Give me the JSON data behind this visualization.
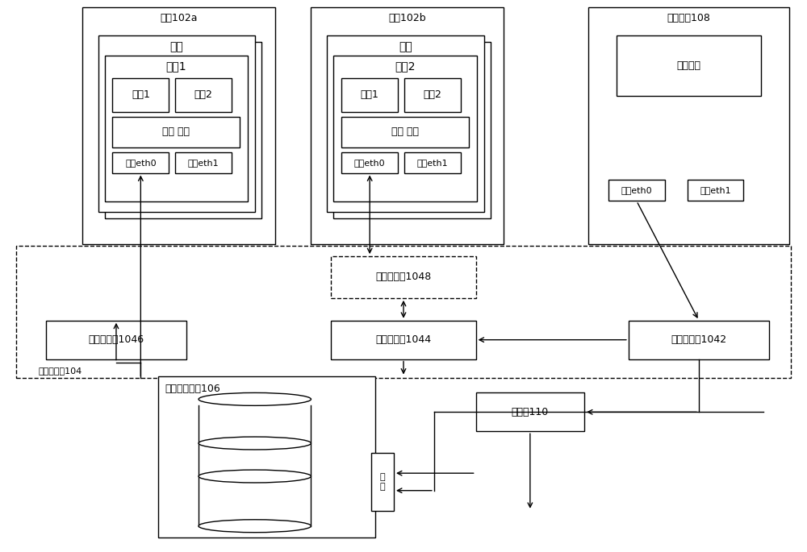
{
  "bg_color": "#ffffff",
  "line_color": "#000000",
  "tenant1_label": "租户102a",
  "tenant2_label": "租户102b",
  "mgmt_device_label": "管理设备108",
  "host_label": "主机",
  "host1_label": "主机1",
  "host2_label": "主机2",
  "app1_label": "应用1",
  "app2_label": "应用2",
  "os_label": "操作 系统",
  "nic0_label": "网卡eth0",
  "nic1_label": "网卡eth1",
  "notify_label": "通知模块",
  "switch_cluster_label": "交换机集群104",
  "access_switch_label": "接入交换机1048",
  "storage_switch_label": "存储交换机1044",
  "biz_switch_label": "业务交换机1046",
  "mgmt_switch_label": "管理交换机1042",
  "shared_storage_label": "共享存储设备106",
  "controller_label": "控制器110",
  "flat_label": "平\n图"
}
